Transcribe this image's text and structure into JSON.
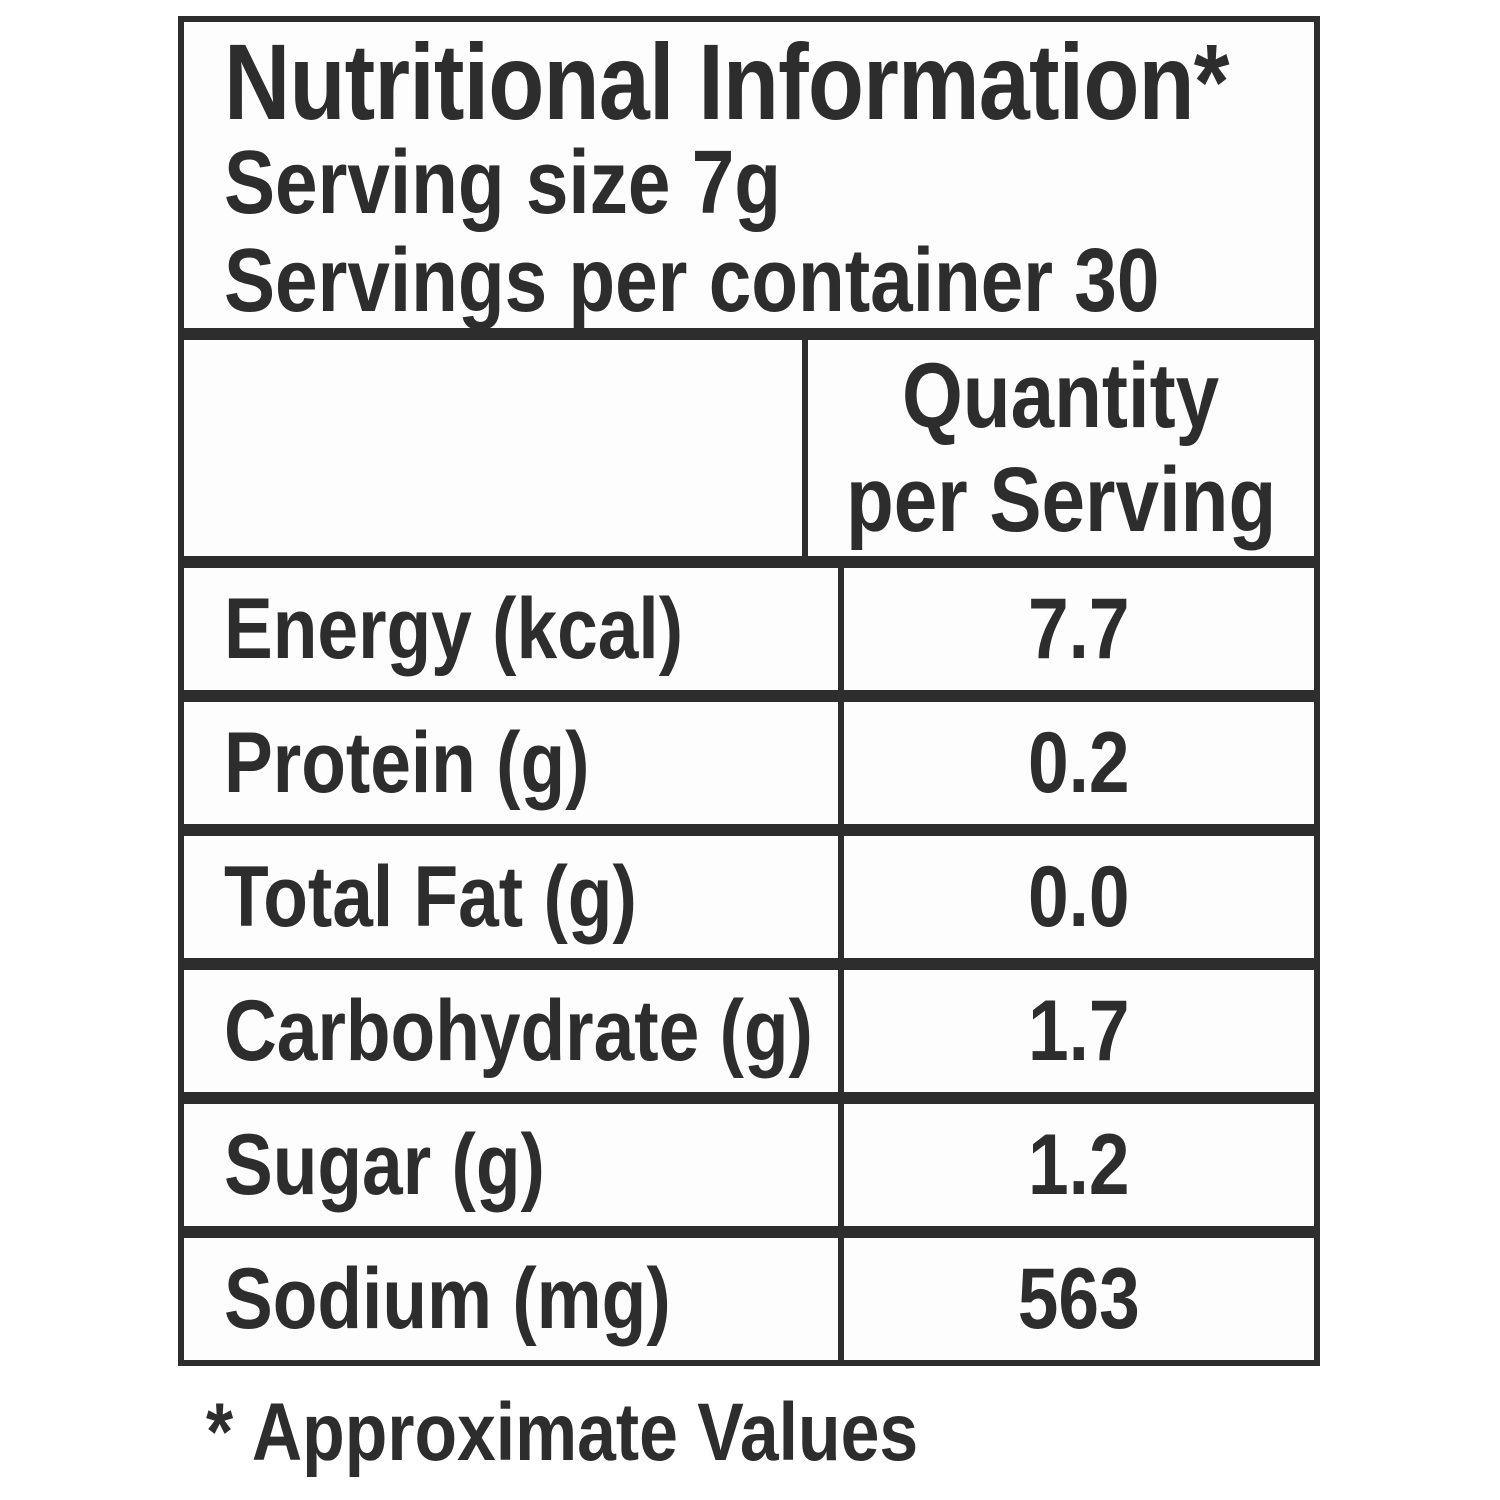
{
  "page": {
    "background": "#ffffff"
  },
  "label": {
    "title": "Nutritional Information*",
    "serving_lines": [
      "Serving size 7g",
      "Servings per container 30"
    ],
    "column_header": {
      "lines": [
        "Quantity",
        "per Serving"
      ]
    },
    "rows": [
      {
        "name": "Energy (kcal)",
        "value": "7.7"
      },
      {
        "name": "Protein (g)",
        "value": "0.2"
      },
      {
        "name": "Total Fat (g)",
        "value": "0.0"
      },
      {
        "name": "Carbohydrate (g)",
        "value": "1.7"
      },
      {
        "name": "Sugar (g)",
        "value": "1.2"
      },
      {
        "name": "Sodium (mg)",
        "value": "563"
      }
    ],
    "footnote": {
      "marker": "*",
      "text": "Approximate Values"
    },
    "colors": {
      "ink": "#2d2d2d",
      "cell_background": "#fdfdfd"
    }
  }
}
